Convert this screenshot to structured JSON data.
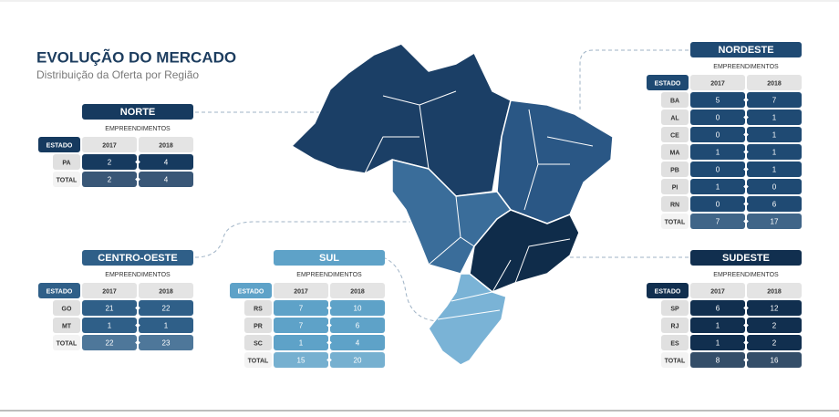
{
  "title": "EVOLUÇÃO DO MERCADO",
  "subtitle": "Distribuição da Oferta por Região",
  "regions": [
    {
      "name": "NORTE",
      "color": "#163a5f",
      "caption": "EMPREENDIMENTOS",
      "columns": [
        "ESTADO",
        "2017",
        "2018"
      ],
      "rows": [
        [
          "PA",
          2,
          4
        ],
        [
          "TOTAL",
          2,
          4
        ]
      ]
    },
    {
      "name": "CENTRO-OESTE",
      "color": "#2f5f88",
      "caption": "EMPREENDIMENTOS",
      "columns": [
        "ESTADO",
        "2017",
        "2018"
      ],
      "rows": [
        [
          "GO",
          21,
          22
        ],
        [
          "MT",
          1,
          1
        ],
        [
          "TOTAL",
          22,
          23
        ]
      ]
    },
    {
      "name": "SUL",
      "color": "#5ea2c8",
      "caption": "EMPREENDIMENTOS",
      "columns": [
        "ESTADO",
        "2017",
        "2018"
      ],
      "rows": [
        [
          "RS",
          7,
          10
        ],
        [
          "PR",
          7,
          6
        ],
        [
          "SC",
          1,
          4
        ],
        [
          "TOTAL",
          15,
          20
        ]
      ]
    },
    {
      "name": "NORDESTE",
      "color": "#1f4a73",
      "caption": "EMPREENDIMENTOS",
      "columns": [
        "ESTADO",
        "2017",
        "2018"
      ],
      "rows": [
        [
          "BA",
          5,
          7
        ],
        [
          "AL",
          0,
          1
        ],
        [
          "CE",
          0,
          1
        ],
        [
          "MA",
          1,
          1
        ],
        [
          "PB",
          0,
          1
        ],
        [
          "PI",
          1,
          0
        ],
        [
          "RN",
          0,
          6
        ],
        [
          "TOTAL",
          7,
          17
        ]
      ]
    },
    {
      "name": "SUDESTE",
      "color": "#112f4f",
      "caption": "EMPREENDIMENTOS",
      "columns": [
        "ESTADO",
        "2017",
        "2018"
      ],
      "rows": [
        [
          "SP",
          6,
          12
        ],
        [
          "RJ",
          1,
          2
        ],
        [
          "ES",
          1,
          2
        ],
        [
          "TOTAL",
          8,
          16
        ]
      ]
    }
  ]
}
